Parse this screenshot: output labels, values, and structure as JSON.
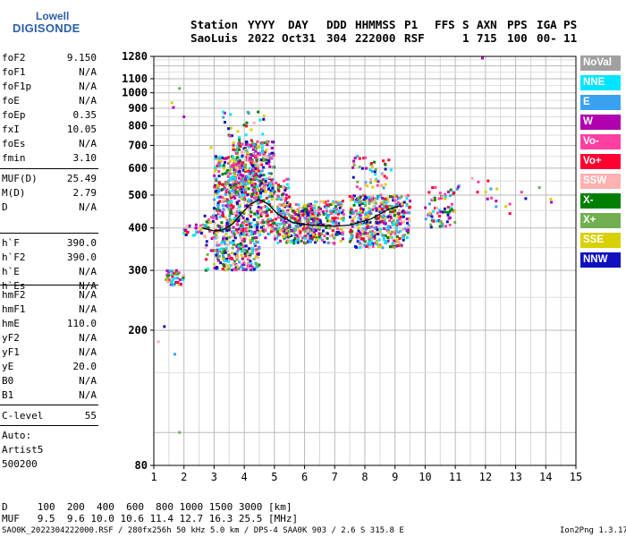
{
  "logo": {
    "line1": "Lowell",
    "line2": "DIGISONDE"
  },
  "header": {
    "labels": [
      "Station",
      "YYYY",
      "DAY",
      "DDD",
      "HHMMSS",
      "P1",
      "FFS",
      "S",
      "AXN",
      "PPS",
      "IGA",
      "PS"
    ],
    "values": [
      "SaoLuis",
      "2022",
      "Oct31",
      "304",
      "222000",
      "RSF",
      "1",
      "715",
      "100",
      "00-",
      "11"
    ]
  },
  "params_group1": [
    {
      "k": "foF2",
      "v": "9.150"
    },
    {
      "k": "foF1",
      "v": "N/A"
    },
    {
      "k": "foF1p",
      "v": "N/A"
    },
    {
      "k": "foE",
      "v": "N/A"
    },
    {
      "k": "foEp",
      "v": "0.35"
    },
    {
      "k": "fxI",
      "v": "10.05"
    },
    {
      "k": "foEs",
      "v": "N/A"
    },
    {
      "k": "fmin",
      "v": "3.10"
    }
  ],
  "params_group2": [
    {
      "k": "MUF(D)",
      "v": "25.49"
    },
    {
      "k": "M(D)",
      "v": "2.79"
    },
    {
      "k": "D",
      "v": "N/A"
    }
  ],
  "params_group3": [
    {
      "k": "h`F",
      "v": "390.0"
    },
    {
      "k": "h`F2",
      "v": "390.0"
    },
    {
      "k": "h`E",
      "v": "N/A"
    },
    {
      "k": "h`Es",
      "v": "N/A"
    }
  ],
  "params_group4": [
    {
      "k": "hmF2",
      "v": "N/A"
    },
    {
      "k": "hmF1",
      "v": "N/A"
    },
    {
      "k": "hmE",
      "v": "110.0"
    },
    {
      "k": "yF2",
      "v": "N/A"
    },
    {
      "k": "yF1",
      "v": "N/A"
    },
    {
      "k": "yE",
      "v": "20.0"
    },
    {
      "k": "B0",
      "v": "N/A"
    },
    {
      "k": "B1",
      "v": "N/A"
    }
  ],
  "clevel": {
    "k": "C-level",
    "v": "55"
  },
  "auto": [
    "Auto:",
    "Artist5",
    "500200"
  ],
  "legend": [
    {
      "label": "NoVal",
      "color": "#a0a0a0"
    },
    {
      "label": "NNE",
      "color": "#00e5ff"
    },
    {
      "label": "E",
      "color": "#3aa0f0"
    },
    {
      "label": "W",
      "color": "#b000b0"
    },
    {
      "label": "Vo-",
      "color": "#ff40a0"
    },
    {
      "label": "Vo+",
      "color": "#ff0030"
    },
    {
      "label": "SSW",
      "color": "#ffb0b0"
    },
    {
      "label": "X-",
      "color": "#008000"
    },
    {
      "label": "X+",
      "color": "#70b050"
    },
    {
      "label": "SSE",
      "color": "#d8d000"
    },
    {
      "label": "NNW",
      "color": "#1010c0"
    }
  ],
  "footer": {
    "d_row": "D     100  200  400  600  800 1000 1500 3000 [km]",
    "muf_row": "MUF   9.5  9.6 10.0 10.6 11.4 12.7 16.3 25.5 [MHz]",
    "file_info": "SAO0K_2022304222000.RSF / 280fx256h 50 kHz 5.0 km / DPS-4 SAA0K 903 / 2.6 S 315.8 E",
    "version": "Ion2Png 1.3.17"
  },
  "chart_data": {
    "type": "scatter",
    "x_ticks": [
      "1",
      "2",
      "3",
      "4",
      "5",
      "6",
      "7",
      "8",
      "9",
      "10",
      "11",
      "12",
      "13",
      "14",
      "15"
    ],
    "y_ticks": [
      "80",
      "200",
      "300",
      "400",
      "500",
      "600",
      "700",
      "800",
      "900",
      "1000",
      "1100",
      "1280"
    ],
    "xlim": [
      1,
      15
    ],
    "ylim": [
      80,
      1280
    ],
    "y_scale": "log",
    "grid": true,
    "legend_position": "right",
    "clusters": [
      {
        "x": [
          3.0,
          4.5
        ],
        "y": [
          300,
          650
        ],
        "n": 750
      },
      {
        "x": [
          3.6,
          5.0
        ],
        "y": [
          500,
          720
        ],
        "n": 260
      },
      {
        "x": [
          4.5,
          5.5
        ],
        "y": [
          370,
          560
        ],
        "n": 160
      },
      {
        "x": [
          5.1,
          6.4
        ],
        "y": [
          360,
          470
        ],
        "n": 230
      },
      {
        "x": [
          6.0,
          7.3
        ],
        "y": [
          360,
          480
        ],
        "n": 200
      },
      {
        "x": [
          7.5,
          9.3
        ],
        "y": [
          350,
          500
        ],
        "n": 420
      },
      {
        "x": [
          7.6,
          8.9
        ],
        "y": [
          520,
          650
        ],
        "n": 50
      },
      {
        "x": [
          9.3,
          9.5
        ],
        "y": [
          370,
          500
        ],
        "n": 25
      },
      {
        "x": [
          10.0,
          11.0
        ],
        "y": [
          400,
          530
        ],
        "n": 70
      },
      {
        "x": [
          1.4,
          2.0
        ],
        "y": [
          270,
          300
        ],
        "n": 45
      },
      {
        "x": [
          2.0,
          2.9
        ],
        "y": [
          380,
          410
        ],
        "n": 35
      },
      {
        "x": [
          2.6,
          3.0
        ],
        "y": [
          300,
          440
        ],
        "n": 25
      },
      {
        "x": [
          3.3,
          4.7
        ],
        "y": [
          700,
          880
        ],
        "n": 30
      },
      {
        "x": [
          11.0,
          14.2
        ],
        "y": [
          420,
          560
        ],
        "n": 20
      }
    ],
    "isolated_points": [
      {
        "x": 1.6,
        "y": 935
      },
      {
        "x": 1.65,
        "y": 905
      },
      {
        "x": 1.85,
        "y": 1030
      },
      {
        "x": 2.0,
        "y": 850
      },
      {
        "x": 1.15,
        "y": 185
      },
      {
        "x": 1.35,
        "y": 205
      },
      {
        "x": 1.7,
        "y": 170
      },
      {
        "x": 1.85,
        "y": 100
      },
      {
        "x": 11.9,
        "y": 1265
      },
      {
        "x": 2.9,
        "y": 690
      },
      {
        "x": 12.2,
        "y": 490
      },
      {
        "x": 13.2,
        "y": 510
      }
    ],
    "trace": [
      {
        "x": 2.6,
        "y": 400
      },
      {
        "x": 3.0,
        "y": 392
      },
      {
        "x": 3.3,
        "y": 395
      },
      {
        "x": 3.6,
        "y": 410
      },
      {
        "x": 3.9,
        "y": 440
      },
      {
        "x": 4.2,
        "y": 470
      },
      {
        "x": 4.5,
        "y": 485
      },
      {
        "x": 4.8,
        "y": 470
      },
      {
        "x": 5.1,
        "y": 440
      },
      {
        "x": 5.6,
        "y": 415
      },
      {
        "x": 6.2,
        "y": 408
      },
      {
        "x": 7.0,
        "y": 405
      },
      {
        "x": 7.5,
        "y": 408
      },
      {
        "x": 8.2,
        "y": 425
      },
      {
        "x": 8.7,
        "y": 450
      },
      {
        "x": 9.15,
        "y": 465
      }
    ]
  }
}
